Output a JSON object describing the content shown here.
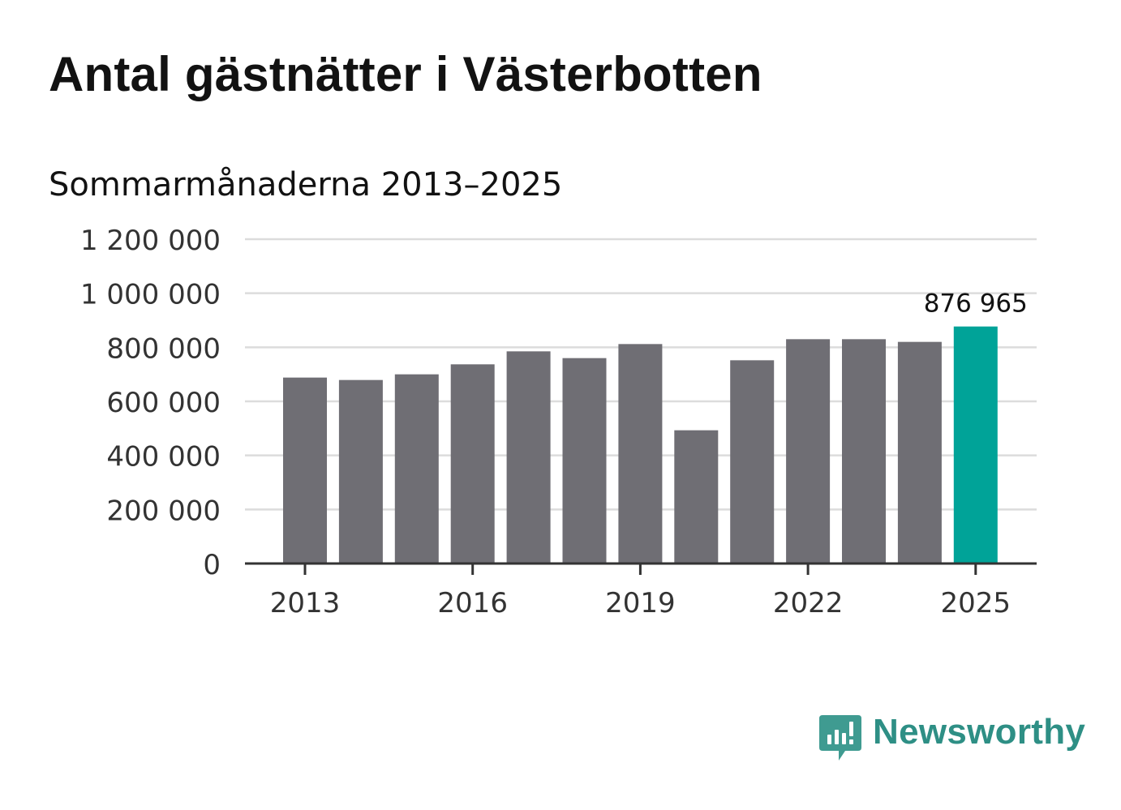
{
  "chart_data": {
    "type": "bar",
    "title": "Antal gästnätter i Västerbotten",
    "subtitle": "Sommarmånaderna 2013–2025",
    "xlabel": "",
    "ylabel": "",
    "categories": [
      "2013",
      "2014",
      "2015",
      "2016",
      "2017",
      "2018",
      "2019",
      "2020",
      "2021",
      "2022",
      "2023",
      "2024",
      "2025"
    ],
    "values": [
      688000,
      679000,
      700000,
      737000,
      785000,
      760000,
      812000,
      493000,
      752000,
      830000,
      830000,
      820000,
      876965
    ],
    "ylim": [
      0,
      1200000
    ],
    "yticks": [
      0,
      200000,
      400000,
      600000,
      800000,
      1000000,
      1200000
    ],
    "ytick_labels": [
      "0",
      "200 000",
      "400 000",
      "600 000",
      "800 000",
      "1 000 000",
      "1 200 000"
    ],
    "xtick_labels": [
      "2013",
      "2016",
      "2019",
      "2022",
      "2025"
    ],
    "highlight_label": "876 965",
    "grid": true,
    "colors": {
      "bar": "#6f6e74",
      "highlight": "#00a398",
      "grid": "#dcdcdc",
      "axis": "#333333"
    }
  },
  "branding": {
    "name": "Newsworthy",
    "icon": "newsworthy-logo-icon",
    "color": "#2e8f85"
  }
}
